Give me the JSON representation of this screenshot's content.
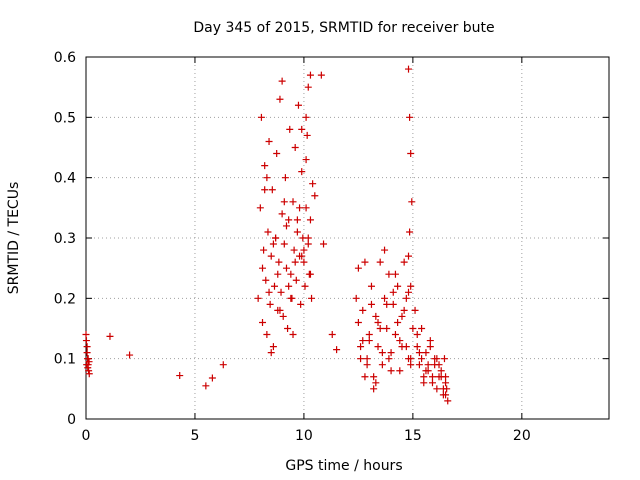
{
  "chart_data": {
    "type": "scatter",
    "title": "Day 345 of 2015, SRMTID for receiver bute",
    "xlabel": "GPS time / hours",
    "ylabel": "SRMTID / TECUs",
    "xlim": [
      0,
      24
    ],
    "ylim": [
      0,
      0.6
    ],
    "xticks": [
      0,
      5,
      10,
      15,
      20
    ],
    "yticks": [
      0,
      0.1,
      0.2,
      0.3,
      0.4,
      0.5,
      0.6
    ],
    "grid": true,
    "marker": "+",
    "marker_color": "#cc0000",
    "series": [
      {
        "name": "bute",
        "x": [
          0.0,
          0.02,
          0.03,
          0.05,
          0.07,
          0.08,
          0.1,
          0.12,
          0.14,
          0.15,
          0.05,
          0.1,
          1.1,
          2.0,
          4.3,
          5.5,
          5.8,
          6.3,
          7.9,
          8.0,
          8.05,
          8.1,
          8.15,
          8.2,
          8.25,
          8.3,
          8.35,
          8.4,
          8.45,
          8.5,
          8.55,
          8.6,
          8.65,
          8.7,
          8.75,
          8.8,
          8.85,
          8.9,
          8.95,
          9.0,
          9.05,
          9.1,
          9.15,
          9.2,
          9.25,
          9.3,
          9.35,
          9.4,
          9.45,
          9.5,
          9.55,
          9.6,
          9.65,
          9.7,
          9.75,
          9.8,
          9.85,
          9.9,
          9.95,
          10.0,
          10.05,
          10.1,
          10.15,
          10.2,
          10.25,
          10.3,
          10.35,
          10.4,
          8.1,
          8.3,
          8.5,
          8.7,
          8.9,
          9.1,
          9.3,
          9.5,
          9.7,
          9.9,
          10.1,
          10.3,
          8.2,
          8.4,
          8.6,
          8.8,
          9.0,
          9.2,
          9.4,
          9.6,
          9.8,
          10.0,
          10.2,
          9.9,
          10.1,
          10.2,
          10.3,
          10.5,
          10.8,
          10.9,
          11.3,
          11.5,
          12.4,
          12.5,
          12.6,
          12.7,
          12.8,
          12.9,
          13.0,
          13.1,
          13.2,
          13.3,
          13.4,
          13.5,
          13.6,
          13.7,
          13.8,
          13.9,
          14.0,
          14.1,
          14.2,
          14.3,
          14.4,
          14.5,
          14.6,
          14.7,
          14.8,
          14.9,
          15.0,
          12.5,
          12.7,
          12.9,
          13.1,
          13.3,
          13.5,
          13.7,
          13.9,
          14.1,
          14.3,
          14.5,
          14.7,
          14.9,
          12.6,
          12.8,
          13.0,
          13.2,
          13.4,
          13.6,
          13.8,
          14.0,
          14.2,
          14.4,
          14.6,
          14.8,
          14.8,
          14.85,
          14.9,
          14.95,
          14.8,
          14.85,
          14.9,
          15.1,
          15.2,
          15.3,
          15.4,
          15.5,
          15.6,
          15.7,
          15.8,
          15.9,
          16.0,
          16.1,
          16.2,
          16.3,
          16.4,
          16.5,
          15.2,
          15.4,
          15.6,
          15.8,
          16.0,
          16.2,
          16.4,
          15.3,
          15.5,
          15.7,
          15.9,
          16.1,
          16.3,
          16.5,
          16.45,
          16.5,
          16.55,
          16.6
        ],
        "y": [
          0.14,
          0.13,
          0.09,
          0.12,
          0.1,
          0.085,
          0.1,
          0.08,
          0.095,
          0.075,
          0.11,
          0.09,
          0.137,
          0.106,
          0.072,
          0.055,
          0.068,
          0.09,
          0.2,
          0.35,
          0.5,
          0.16,
          0.28,
          0.42,
          0.23,
          0.14,
          0.31,
          0.46,
          0.19,
          0.27,
          0.38,
          0.12,
          0.22,
          0.3,
          0.44,
          0.18,
          0.26,
          0.53,
          0.21,
          0.34,
          0.17,
          0.29,
          0.4,
          0.25,
          0.15,
          0.33,
          0.48,
          0.24,
          0.2,
          0.36,
          0.28,
          0.45,
          0.23,
          0.31,
          0.52,
          0.27,
          0.19,
          0.41,
          0.3,
          0.26,
          0.22,
          0.35,
          0.47,
          0.29,
          0.24,
          0.33,
          0.2,
          0.39,
          0.25,
          0.4,
          0.11,
          0.3,
          0.18,
          0.36,
          0.22,
          0.14,
          0.33,
          0.27,
          0.43,
          0.24,
          0.38,
          0.21,
          0.29,
          0.24,
          0.56,
          0.32,
          0.2,
          0.26,
          0.35,
          0.28,
          0.55,
          0.48,
          0.5,
          0.3,
          0.57,
          0.37,
          0.57,
          0.29,
          0.14,
          0.115,
          0.2,
          0.16,
          0.12,
          0.18,
          0.26,
          0.1,
          0.14,
          0.22,
          0.07,
          0.17,
          0.12,
          0.26,
          0.09,
          0.2,
          0.15,
          0.24,
          0.11,
          0.19,
          0.14,
          0.22,
          0.08,
          0.17,
          0.26,
          0.12,
          0.21,
          0.1,
          0.15,
          0.25,
          0.13,
          0.09,
          0.19,
          0.06,
          0.15,
          0.28,
          0.1,
          0.21,
          0.16,
          0.12,
          0.2,
          0.09,
          0.1,
          0.07,
          0.13,
          0.05,
          0.16,
          0.11,
          0.19,
          0.08,
          0.24,
          0.13,
          0.18,
          0.1,
          0.58,
          0.5,
          0.44,
          0.36,
          0.27,
          0.31,
          0.22,
          0.18,
          0.12,
          0.09,
          0.15,
          0.07,
          0.11,
          0.08,
          0.13,
          0.06,
          0.1,
          0.05,
          0.09,
          0.07,
          0.04,
          0.06,
          0.14,
          0.1,
          0.08,
          0.12,
          0.09,
          0.07,
          0.05,
          0.11,
          0.06,
          0.09,
          0.07,
          0.1,
          0.08,
          0.04,
          0.1,
          0.07,
          0.05,
          0.03
        ]
      }
    ]
  }
}
